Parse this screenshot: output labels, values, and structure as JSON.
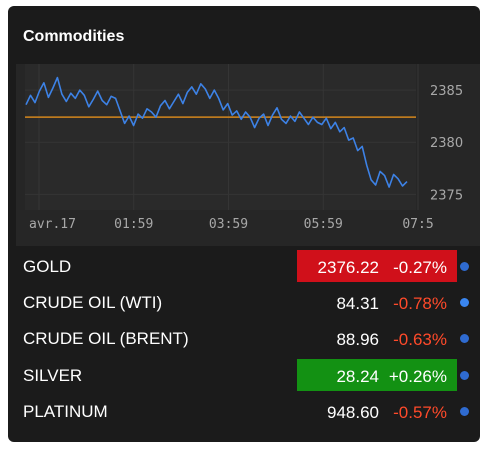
{
  "widget": {
    "title": "Commodities"
  },
  "chart_data": {
    "type": "line",
    "x_labels": [
      "avr.17",
      "01:59",
      "03:59",
      "05:59",
      "07:5"
    ],
    "y_ticks": [
      2385,
      2380,
      2375
    ],
    "ylim": [
      2373.5,
      2387.5
    ],
    "reference_line": 2382.4,
    "line_color": "#3d82e6",
    "reference_color": "#d3861c",
    "series": [
      {
        "values": [
          2383.6,
          2384.5,
          2383.8,
          2384.9,
          2385.7,
          2384.3,
          2385.2,
          2386.2,
          2384.6,
          2383.9,
          2384.7,
          2384.2,
          2385.0,
          2384.5,
          2383.4,
          2384.1,
          2384.9,
          2384.0,
          2383.6,
          2384.4,
          2384.2,
          2383.0,
          2381.8,
          2382.5,
          2381.6,
          2382.7,
          2382.3,
          2383.2,
          2382.9,
          2382.4,
          2383.5,
          2384.0,
          2383.2,
          2383.9,
          2384.6,
          2383.7,
          2384.8,
          2385.3,
          2384.6,
          2385.6,
          2385.1,
          2384.2,
          2385.0,
          2384.2,
          2383.1,
          2383.7,
          2382.6,
          2383.0,
          2382.2,
          2382.9,
          2382.4,
          2381.4,
          2382.3,
          2382.7,
          2381.6,
          2382.6,
          2383.3,
          2382.2,
          2381.8,
          2382.5,
          2382.0,
          2382.9,
          2382.3,
          2381.7,
          2382.4,
          2381.9,
          2381.7,
          2382.3,
          2381.3,
          2381.9,
          2381.0,
          2381.4,
          2380.2,
          2380.4,
          2379.2,
          2379.6,
          2377.8,
          2376.4,
          2375.9,
          2377.2,
          2376.8,
          2375.7,
          2376.9,
          2376.5,
          2375.8,
          2376.22
        ]
      }
    ]
  },
  "commodities": [
    {
      "name": "GOLD",
      "price": "2376.22",
      "change": "-0.27%",
      "highlight": "red",
      "dot": "#2f6bd0"
    },
    {
      "name": "CRUDE OIL (WTI)",
      "price": "84.31",
      "change": "-0.78%",
      "highlight": "",
      "dot": "#3a86f0"
    },
    {
      "name": "CRUDE OIL (BRENT)",
      "price": "88.96",
      "change": "-0.63%",
      "highlight": "",
      "dot": "#2f6bd0"
    },
    {
      "name": "SILVER",
      "price": "28.24",
      "change": "+0.26%",
      "highlight": "green",
      "dot": "#2f6bd0"
    },
    {
      "name": "PLATINUM",
      "price": "948.60",
      "change": "-0.57%",
      "highlight": "",
      "dot": "#2f6bd0"
    }
  ]
}
